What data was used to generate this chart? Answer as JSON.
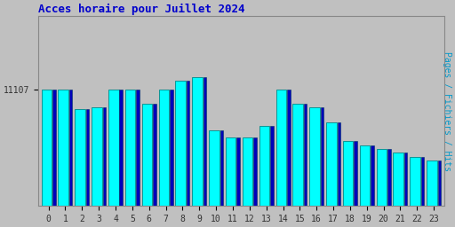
{
  "title": "Acces horaire pour Juillet 2024",
  "title_color": "#0000cc",
  "title_fontsize": 9,
  "ylabel": "Pages / Fichiers / Hits",
  "ylabel_color": "#0099cc",
  "ylabel_fontsize": 7,
  "background_color": "#c0c0c0",
  "plot_bg_color": "#c0c0c0",
  "bar_face_color": "#00ffff",
  "bar_dark_color": "#0000bb",
  "bar_outline_color": "#008888",
  "xlabels": [
    "0",
    "1",
    "2",
    "3",
    "4",
    "5",
    "6",
    "7",
    "8",
    "9",
    "10",
    "11",
    "12",
    "13",
    "14",
    "15",
    "16",
    "17",
    "18",
    "19",
    "20",
    "21",
    "22",
    "23"
  ],
  "ytick_label": "11107",
  "ytick_value": 11107,
  "ymin": 10800,
  "ymax": 11300,
  "heights_cyan": [
    11107,
    11107,
    11055,
    11060,
    11107,
    11107,
    11070,
    11107,
    11130,
    11140,
    11000,
    10980,
    10980,
    11010,
    11107,
    11070,
    11060,
    11020,
    10970,
    10960,
    10950,
    10940,
    10930,
    10920
  ],
  "heights_dark": [
    11107,
    11107,
    11055,
    11060,
    11107,
    11107,
    11070,
    11107,
    11130,
    11140,
    11000,
    10980,
    10980,
    11010,
    11107,
    11070,
    11060,
    11020,
    10970,
    10960,
    10950,
    10940,
    10930,
    10920
  ],
  "font_family": "monospace"
}
